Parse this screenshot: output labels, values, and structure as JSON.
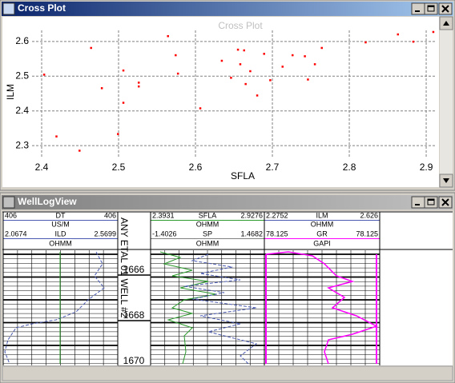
{
  "windows": [
    {
      "title": "Cross Plot"
    },
    {
      "title": "WellLogView"
    }
  ],
  "chart_data": {
    "type": "scatter",
    "title": "Cross Plot",
    "x_label": "SFLA",
    "y_label": "ILM",
    "color": "#ff0000",
    "grid": true,
    "xlim": [
      2.3875,
      2.9135
    ],
    "ylim": [
      2.268,
      2.632
    ],
    "xticks": [
      2.4,
      2.5,
      2.6,
      2.7,
      2.8,
      2.9
    ],
    "yticks": [
      2.3,
      2.4,
      2.5,
      2.6
    ],
    "x": [
      2.403,
      2.419,
      2.449,
      2.464,
      2.478,
      2.499,
      2.506,
      2.506,
      2.526,
      2.526,
      2.564,
      2.574,
      2.577,
      2.606,
      2.634,
      2.646,
      2.655,
      2.658,
      2.663,
      2.665,
      2.671,
      2.68,
      2.689,
      2.697,
      2.713,
      2.726,
      2.742,
      2.746,
      2.755,
      2.764,
      2.821,
      2.863,
      2.883,
      2.909
    ],
    "y": [
      2.505,
      2.327,
      2.286,
      2.582,
      2.466,
      2.334,
      2.517,
      2.424,
      2.482,
      2.471,
      2.616,
      2.561,
      2.508,
      2.408,
      2.545,
      2.496,
      2.577,
      2.535,
      2.575,
      2.478,
      2.515,
      2.445,
      2.565,
      2.489,
      2.528,
      2.561,
      2.558,
      2.491,
      2.535,
      2.582,
      2.598,
      2.621,
      2.6,
      2.628
    ]
  },
  "well_log": {
    "well_name": "ANY ETAL 01 WELL #2",
    "depths": [
      "1666",
      "1668",
      "1670"
    ],
    "tracks": [
      {
        "rows": [
          [
            "406",
            "DT",
            "406"
          ],
          [
            "US/M"
          ],
          [
            "2.0674",
            "ILD",
            "2.5699"
          ],
          [
            "OHMM"
          ]
        ]
      },
      {
        "rows": [
          [
            "2.3931",
            "SFLA",
            "2.9276"
          ],
          [
            "OHMM"
          ],
          [
            "-1.4026",
            "SP",
            "1.4682"
          ],
          [
            "OHMM"
          ]
        ]
      },
      {
        "rows": [
          [
            "2.2752",
            "ILM",
            "2.626"
          ],
          [
            "OHMM"
          ],
          [
            "78.125",
            "GR",
            "78.125"
          ],
          [
            "GAPI"
          ]
        ]
      }
    ]
  }
}
